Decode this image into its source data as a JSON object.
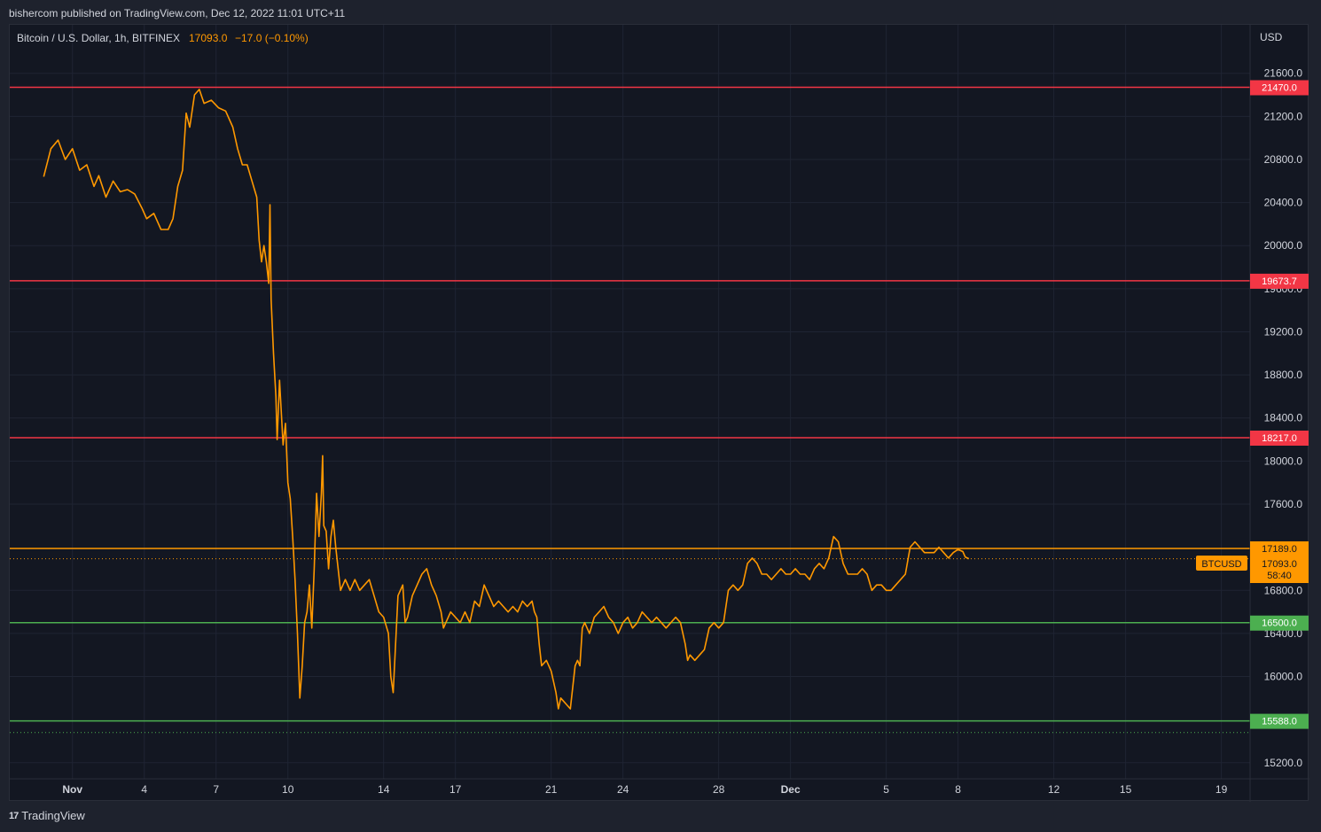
{
  "publisher_line": "bishercom published on TradingView.com, Dec 12, 2022 11:01 UTC+11",
  "footer": {
    "brand": "TradingView",
    "logo_glyph": "17"
  },
  "chart_data": {
    "type": "line",
    "symbol_name": "Bitcoin / U.S. Dollar, 1h, BITFINEX",
    "last_price": "17093.0",
    "change": "−17.0 (−0.10%)",
    "currency": "USD",
    "ticker": "BTCUSD",
    "countdown": "58:40",
    "ylim": [
      15050,
      22050
    ],
    "y_ticks": [
      "21600.0",
      "21200.0",
      "20800.0",
      "20400.0",
      "20000.0",
      "19600.0",
      "19200.0",
      "18800.0",
      "18400.0",
      "18000.0",
      "17600.0",
      "16800.0",
      "16400.0",
      "16000.0",
      "15200.0"
    ],
    "x_ticks": [
      {
        "day": 1,
        "label": "Nov"
      },
      {
        "day": 4,
        "label": "4"
      },
      {
        "day": 7,
        "label": "7"
      },
      {
        "day": 10,
        "label": "10"
      },
      {
        "day": 14,
        "label": "14"
      },
      {
        "day": 17,
        "label": "17"
      },
      {
        "day": 21,
        "label": "21"
      },
      {
        "day": 24,
        "label": "24"
      },
      {
        "day": 28,
        "label": "28"
      },
      {
        "day": 31,
        "label": "Dec"
      },
      {
        "day": 35,
        "label": "5"
      },
      {
        "day": 38,
        "label": "8"
      },
      {
        "day": 42,
        "label": "12"
      },
      {
        "day": 45,
        "label": "15"
      },
      {
        "day": 49,
        "label": "19"
      }
    ],
    "x_range_days": [
      -1.62,
      50.2
    ],
    "levels": [
      {
        "value": 21470.0,
        "label": "21470.0",
        "color": "#f23645"
      },
      {
        "value": 19673.7,
        "label": "19673.7",
        "color": "#f23645"
      },
      {
        "value": 18217.0,
        "label": "18217.0",
        "color": "#f23645"
      },
      {
        "value": 17189.0,
        "label": "17189.0",
        "color": "#ff9800"
      },
      {
        "value": 16500.0,
        "label": "16500.0",
        "color": "#4caf50"
      },
      {
        "value": 15588.0,
        "label": "15588.0",
        "color": "#4caf50"
      }
    ],
    "dotted_levels": [
      {
        "value": 17093.0,
        "color": "#ff9800"
      },
      {
        "value": 15480.0,
        "color": "#4caf50"
      }
    ],
    "series": [
      {
        "line_color": "#ff9800",
        "points": [
          [
            -0.2,
            20640
          ],
          [
            0.1,
            20900
          ],
          [
            0.4,
            20980
          ],
          [
            0.7,
            20800
          ],
          [
            1.0,
            20900
          ],
          [
            1.3,
            20700
          ],
          [
            1.6,
            20750
          ],
          [
            1.9,
            20550
          ],
          [
            2.1,
            20650
          ],
          [
            2.4,
            20450
          ],
          [
            2.7,
            20600
          ],
          [
            3.0,
            20500
          ],
          [
            3.3,
            20520
          ],
          [
            3.6,
            20480
          ],
          [
            3.9,
            20350
          ],
          [
            4.1,
            20250
          ],
          [
            4.4,
            20300
          ],
          [
            4.7,
            20150
          ],
          [
            5.0,
            20150
          ],
          [
            5.2,
            20250
          ],
          [
            5.4,
            20550
          ],
          [
            5.6,
            20700
          ],
          [
            5.75,
            21230
          ],
          [
            5.9,
            21100
          ],
          [
            6.1,
            21400
          ],
          [
            6.3,
            21450
          ],
          [
            6.5,
            21320
          ],
          [
            6.8,
            21350
          ],
          [
            7.1,
            21280
          ],
          [
            7.4,
            21250
          ],
          [
            7.7,
            21100
          ],
          [
            7.9,
            20900
          ],
          [
            8.1,
            20750
          ],
          [
            8.3,
            20750
          ],
          [
            8.5,
            20600
          ],
          [
            8.7,
            20450
          ],
          [
            8.8,
            20050
          ],
          [
            8.9,
            19850
          ],
          [
            9.0,
            20000
          ],
          [
            9.1,
            19850
          ],
          [
            9.2,
            19650
          ],
          [
            9.25,
            20380
          ],
          [
            9.3,
            19500
          ],
          [
            9.4,
            19000
          ],
          [
            9.5,
            18600
          ],
          [
            9.55,
            18200
          ],
          [
            9.65,
            18750
          ],
          [
            9.8,
            18150
          ],
          [
            9.9,
            18350
          ],
          [
            10.0,
            17800
          ],
          [
            10.1,
            17650
          ],
          [
            10.2,
            17300
          ],
          [
            10.3,
            16900
          ],
          [
            10.4,
            16400
          ],
          [
            10.5,
            15800
          ],
          [
            10.6,
            16100
          ],
          [
            10.7,
            16500
          ],
          [
            10.8,
            16600
          ],
          [
            10.9,
            16850
          ],
          [
            11.0,
            16450
          ],
          [
            11.1,
            17000
          ],
          [
            11.2,
            17700
          ],
          [
            11.3,
            17300
          ],
          [
            11.4,
            17700
          ],
          [
            11.45,
            18050
          ],
          [
            11.5,
            17400
          ],
          [
            11.6,
            17350
          ],
          [
            11.7,
            17000
          ],
          [
            11.8,
            17300
          ],
          [
            11.9,
            17450
          ],
          [
            12.0,
            17200
          ],
          [
            12.1,
            17000
          ],
          [
            12.2,
            16800
          ],
          [
            12.4,
            16900
          ],
          [
            12.6,
            16800
          ],
          [
            12.8,
            16900
          ],
          [
            13.0,
            16800
          ],
          [
            13.2,
            16850
          ],
          [
            13.4,
            16900
          ],
          [
            13.6,
            16750
          ],
          [
            13.8,
            16600
          ],
          [
            14.0,
            16550
          ],
          [
            14.2,
            16400
          ],
          [
            14.3,
            16000
          ],
          [
            14.4,
            15850
          ],
          [
            14.5,
            16300
          ],
          [
            14.6,
            16750
          ],
          [
            14.8,
            16850
          ],
          [
            14.9,
            16500
          ],
          [
            15.0,
            16550
          ],
          [
            15.2,
            16750
          ],
          [
            15.4,
            16850
          ],
          [
            15.6,
            16950
          ],
          [
            15.8,
            17000
          ],
          [
            16.0,
            16850
          ],
          [
            16.2,
            16750
          ],
          [
            16.4,
            16600
          ],
          [
            16.5,
            16450
          ],
          [
            16.6,
            16500
          ],
          [
            16.8,
            16600
          ],
          [
            17.0,
            16550
          ],
          [
            17.2,
            16500
          ],
          [
            17.4,
            16600
          ],
          [
            17.6,
            16500
          ],
          [
            17.8,
            16700
          ],
          [
            18.0,
            16650
          ],
          [
            18.2,
            16850
          ],
          [
            18.4,
            16750
          ],
          [
            18.6,
            16650
          ],
          [
            18.8,
            16700
          ],
          [
            19.0,
            16650
          ],
          [
            19.2,
            16600
          ],
          [
            19.4,
            16650
          ],
          [
            19.6,
            16600
          ],
          [
            19.8,
            16700
          ],
          [
            20.0,
            16650
          ],
          [
            20.2,
            16700
          ],
          [
            20.3,
            16600
          ],
          [
            20.4,
            16550
          ],
          [
            20.5,
            16300
          ],
          [
            20.6,
            16100
          ],
          [
            20.8,
            16150
          ],
          [
            21.0,
            16050
          ],
          [
            21.2,
            15850
          ],
          [
            21.3,
            15700
          ],
          [
            21.4,
            15800
          ],
          [
            21.6,
            15750
          ],
          [
            21.8,
            15700
          ],
          [
            22.0,
            16100
          ],
          [
            22.1,
            16150
          ],
          [
            22.2,
            16100
          ],
          [
            22.3,
            16450
          ],
          [
            22.4,
            16500
          ],
          [
            22.6,
            16400
          ],
          [
            22.8,
            16550
          ],
          [
            23.0,
            16600
          ],
          [
            23.2,
            16650
          ],
          [
            23.4,
            16550
          ],
          [
            23.6,
            16500
          ],
          [
            23.8,
            16400
          ],
          [
            24.0,
            16500
          ],
          [
            24.2,
            16550
          ],
          [
            24.4,
            16450
          ],
          [
            24.6,
            16500
          ],
          [
            24.8,
            16600
          ],
          [
            25.0,
            16550
          ],
          [
            25.2,
            16500
          ],
          [
            25.4,
            16550
          ],
          [
            25.6,
            16500
          ],
          [
            25.8,
            16450
          ],
          [
            26.0,
            16500
          ],
          [
            26.2,
            16550
          ],
          [
            26.4,
            16500
          ],
          [
            26.6,
            16300
          ],
          [
            26.7,
            16150
          ],
          [
            26.8,
            16200
          ],
          [
            27.0,
            16150
          ],
          [
            27.2,
            16200
          ],
          [
            27.4,
            16250
          ],
          [
            27.6,
            16450
          ],
          [
            27.8,
            16500
          ],
          [
            28.0,
            16450
          ],
          [
            28.2,
            16500
          ],
          [
            28.4,
            16800
          ],
          [
            28.6,
            16850
          ],
          [
            28.8,
            16800
          ],
          [
            29.0,
            16850
          ],
          [
            29.2,
            17050
          ],
          [
            29.4,
            17100
          ],
          [
            29.6,
            17050
          ],
          [
            29.8,
            16950
          ],
          [
            30.0,
            16950
          ],
          [
            30.2,
            16900
          ],
          [
            30.4,
            16950
          ],
          [
            30.6,
            17000
          ],
          [
            30.8,
            16950
          ],
          [
            31.0,
            16950
          ],
          [
            31.2,
            17000
          ],
          [
            31.4,
            16950
          ],
          [
            31.6,
            16950
          ],
          [
            31.8,
            16900
          ],
          [
            32.0,
            17000
          ],
          [
            32.2,
            17050
          ],
          [
            32.4,
            17000
          ],
          [
            32.6,
            17100
          ],
          [
            32.8,
            17300
          ],
          [
            33.0,
            17250
          ],
          [
            33.2,
            17050
          ],
          [
            33.4,
            16950
          ],
          [
            33.6,
            16950
          ],
          [
            33.8,
            16950
          ],
          [
            34.0,
            17000
          ],
          [
            34.2,
            16950
          ],
          [
            34.4,
            16800
          ],
          [
            34.6,
            16850
          ],
          [
            34.8,
            16850
          ],
          [
            35.0,
            16800
          ],
          [
            35.2,
            16800
          ],
          [
            35.4,
            16850
          ],
          [
            35.6,
            16900
          ],
          [
            35.8,
            16950
          ],
          [
            36.0,
            17200
          ],
          [
            36.2,
            17250
          ],
          [
            36.4,
            17200
          ],
          [
            36.6,
            17150
          ],
          [
            36.8,
            17150
          ],
          [
            37.0,
            17150
          ],
          [
            37.2,
            17200
          ],
          [
            37.4,
            17150
          ],
          [
            37.6,
            17100
          ],
          [
            37.8,
            17150
          ],
          [
            38.0,
            17180
          ],
          [
            38.2,
            17160
          ],
          [
            38.3,
            17110
          ],
          [
            38.45,
            17093
          ]
        ]
      }
    ]
  }
}
